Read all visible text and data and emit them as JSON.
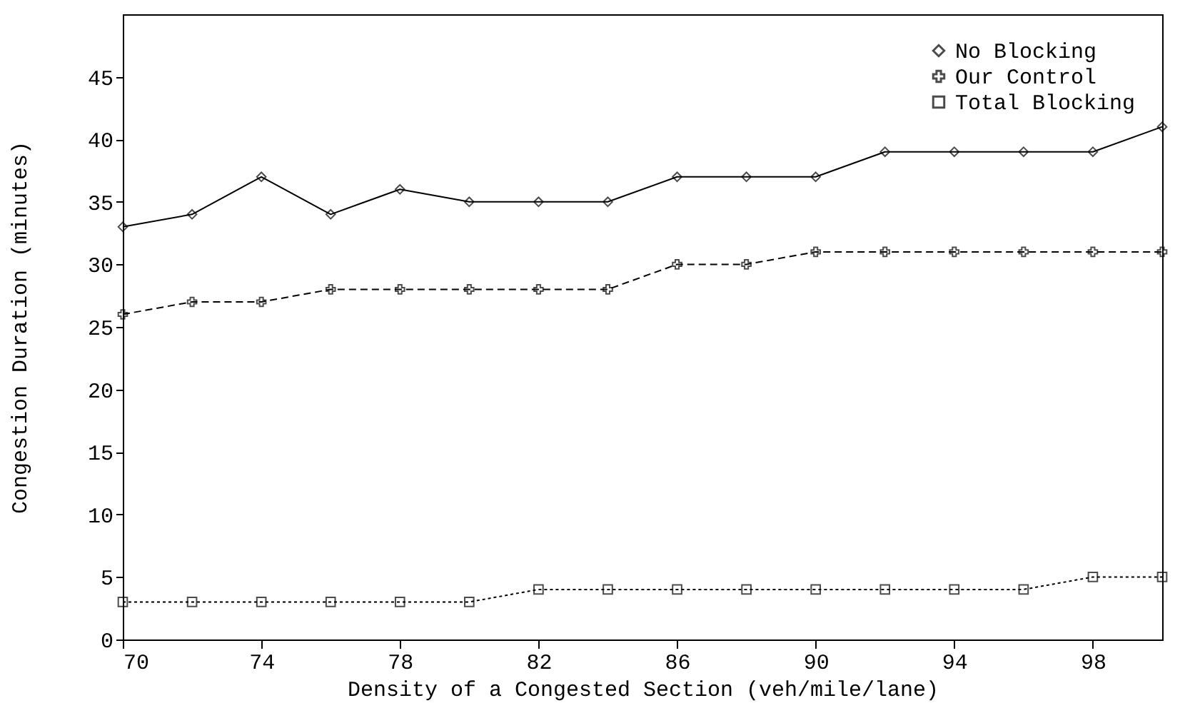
{
  "chart_data": {
    "type": "line",
    "xlabel": "Density of a Congested Section (veh/mile/lane)",
    "ylabel": "Congestion Duration (minutes)",
    "x": [
      70,
      72,
      74,
      76,
      78,
      80,
      82,
      84,
      86,
      88,
      90,
      92,
      94,
      96,
      98,
      100
    ],
    "series": [
      {
        "name": "No Blocking",
        "color": "#000000",
        "marker": "diamond",
        "line_style": "solid",
        "values": [
          33,
          34,
          37,
          34,
          36,
          35,
          35,
          35,
          37,
          37,
          37,
          39,
          39,
          39,
          39,
          41
        ]
      },
      {
        "name": "Our Control",
        "color": "#000000",
        "marker": "cross",
        "line_style": "dashed",
        "values": [
          26,
          27,
          27,
          28,
          28,
          28,
          28,
          28,
          30,
          30,
          31,
          31,
          31,
          31,
          31,
          31
        ]
      },
      {
        "name": "Total Blocking",
        "color": "#000000",
        "marker": "square",
        "line_style": "dotted",
        "values": [
          3,
          3,
          3,
          3,
          3,
          3,
          4,
          4,
          4,
          4,
          4,
          4,
          4,
          4,
          5,
          5
        ]
      }
    ],
    "xlim": [
      70,
      100
    ],
    "xticks": [
      70,
      74,
      78,
      82,
      86,
      90,
      94,
      98
    ],
    "ylim": [
      0,
      50
    ],
    "yticks": [
      0,
      5,
      10,
      15,
      20,
      25,
      30,
      35,
      40,
      45
    ],
    "grid": false,
    "legend": "top right"
  }
}
